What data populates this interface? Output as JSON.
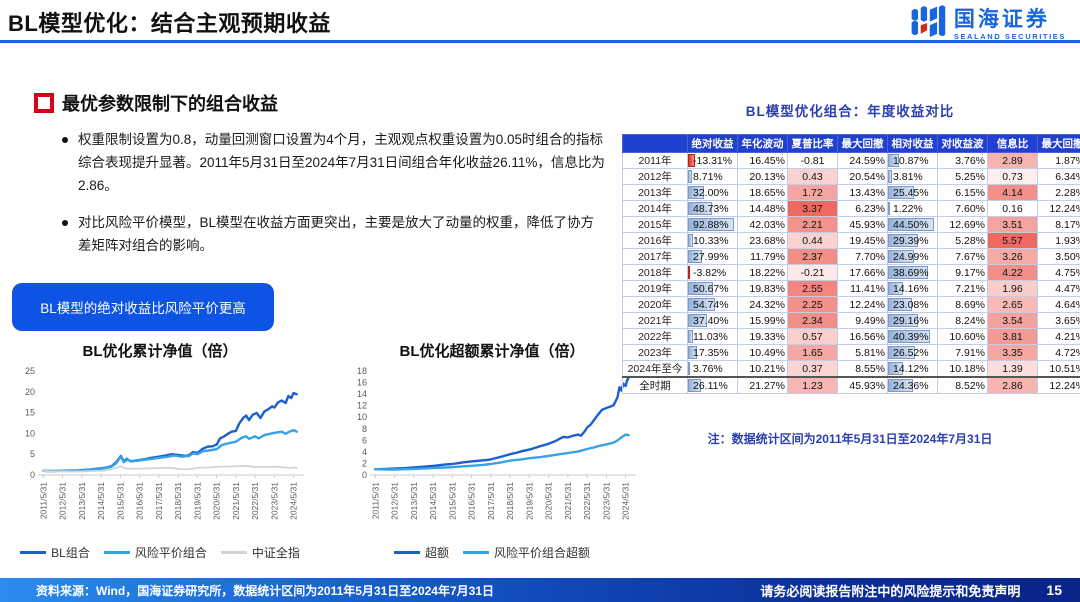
{
  "header": {
    "title": "BL模型优化：结合主观预期收益",
    "logo": {
      "brand": "国海证券",
      "sub": "SEALAND SECURITIES"
    }
  },
  "section": {
    "heading": "最优参数限制下的组合收益",
    "bullets": [
      "权重限制设置为0.8，动量回测窗口设置为4个月，主观观点权重设置为0.05时组合的指标综合表现提升显著。2011年5月31日至2024年7月31日间组合年化收益26.11%，信息比为2.86。",
      "对比风险平价模型，BL模型在收益方面更突出，主要是放大了动量的权重，降低了协方差矩阵对组合的影响。"
    ],
    "callout": "BL模型的绝对收益比风险平价更高"
  },
  "colors": {
    "accent_blue": "#1666e3",
    "callout_bg": "#0d53e4",
    "table_header_bg": "#2140d0",
    "dark_line": "#1b5fd0",
    "light_line": "#35a3e6",
    "gray_line": "#d4d4d4",
    "heat_red": "#ee6a60",
    "bar_blue": "#97b3d9",
    "negative_red": "#d9372b",
    "note_blue": "#2b3fb0"
  },
  "chart_data": [
    {
      "type": "line",
      "title": "BL优化累计净值（倍）",
      "xlabel": "",
      "ylabel": "",
      "xlim": [
        2011.25,
        2024.75
      ],
      "ylim": [
        0,
        25
      ],
      "y_ticks": [
        0,
        5,
        10,
        15,
        20,
        25
      ],
      "x_ticks": [
        "2011/5/31",
        "2012/5/31",
        "2013/5/31",
        "2014/5/31",
        "2015/5/31",
        "2016/5/31",
        "2017/5/31",
        "2018/5/31",
        "2019/5/31",
        "2020/5/31",
        "2021/5/31",
        "2022/5/31",
        "2023/5/31",
        "2024/5/31"
      ],
      "x_tick_start": 2011.42,
      "legend_position": "bottom",
      "grid": false,
      "series": [
        {
          "name": "BL组合",
          "color": "#1b5fd0",
          "width": 2.4,
          "x": [
            2011.42,
            2011.7,
            2012.0,
            2012.3,
            2012.6,
            2012.9,
            2013.2,
            2013.5,
            2013.8,
            2014.1,
            2014.42,
            2014.7,
            2014.95,
            2015.2,
            2015.45,
            2015.6,
            2015.75,
            2015.95,
            2016.1,
            2016.42,
            2016.7,
            2017.0,
            2017.42,
            2017.8,
            2018.1,
            2018.42,
            2018.8,
            2019.0,
            2019.2,
            2019.42,
            2019.7,
            2019.95,
            2020.2,
            2020.42,
            2020.6,
            2020.85,
            2021.0,
            2021.2,
            2021.42,
            2021.6,
            2021.8,
            2021.95,
            2022.1,
            2022.3,
            2022.5,
            2022.7,
            2022.9,
            2023.1,
            2023.3,
            2023.42,
            2023.6,
            2023.8,
            2024.0,
            2024.15,
            2024.3,
            2024.42,
            2024.58
          ],
          "y": [
            1.0,
            0.95,
            0.9,
            1.0,
            1.05,
            1.05,
            1.1,
            1.2,
            1.3,
            1.45,
            1.6,
            1.8,
            2.1,
            3.0,
            4.6,
            3.2,
            3.9,
            3.3,
            3.4,
            3.6,
            3.8,
            4.1,
            4.4,
            4.7,
            5.0,
            4.8,
            4.6,
            4.8,
            5.5,
            5.3,
            6.3,
            6.8,
            6.9,
            7.3,
            8.8,
            9.4,
            9.9,
            10.4,
            10.6,
            12.4,
            13.7,
            14.3,
            13.2,
            14.5,
            14.9,
            13.7,
            15.3,
            15.8,
            16.5,
            16.2,
            17.4,
            17.9,
            17.3,
            19.0,
            18.5,
            19.7,
            19.4
          ]
        },
        {
          "name": "风险平价组合",
          "color": "#35a3e6",
          "width": 2.4,
          "x": [
            2011.42,
            2012.0,
            2012.42,
            2012.9,
            2013.42,
            2013.9,
            2014.42,
            2014.95,
            2015.2,
            2015.45,
            2015.6,
            2015.8,
            2016.0,
            2016.42,
            2016.9,
            2017.42,
            2017.9,
            2018.2,
            2018.6,
            2019.0,
            2019.2,
            2019.42,
            2019.7,
            2020.0,
            2020.42,
            2020.7,
            2021.0,
            2021.42,
            2021.7,
            2021.95,
            2022.1,
            2022.42,
            2022.6,
            2022.9,
            2023.2,
            2023.5,
            2023.8,
            2024.0,
            2024.2,
            2024.42,
            2024.58
          ],
          "y": [
            1.0,
            0.95,
            1.0,
            1.05,
            1.1,
            1.3,
            1.5,
            1.95,
            2.8,
            4.5,
            3.1,
            3.7,
            3.3,
            3.5,
            3.8,
            4.1,
            4.4,
            4.7,
            4.4,
            4.6,
            5.2,
            5.0,
            5.7,
            5.9,
            6.2,
            7.2,
            7.6,
            8.0,
            8.9,
            9.3,
            8.7,
            9.3,
            8.8,
            9.6,
            9.9,
            10.2,
            10.4,
            9.9,
            10.4,
            10.8,
            10.4
          ]
        },
        {
          "name": "中证全指",
          "color": "#d4d4d4",
          "width": 1.8,
          "x": [
            2011.42,
            2012.0,
            2012.42,
            2013.0,
            2013.42,
            2014.0,
            2014.42,
            2014.9,
            2015.2,
            2015.45,
            2015.7,
            2016.0,
            2016.42,
            2017.0,
            2017.42,
            2017.9,
            2018.42,
            2018.8,
            2019.0,
            2019.42,
            2020.0,
            2020.6,
            2021.0,
            2021.42,
            2021.9,
            2022.42,
            2022.9,
            2023.42,
            2023.9,
            2024.2,
            2024.42,
            2024.58
          ],
          "y": [
            1.0,
            0.85,
            0.9,
            0.85,
            0.9,
            0.95,
            1.0,
            1.25,
            1.7,
            2.15,
            1.55,
            1.5,
            1.55,
            1.6,
            1.65,
            1.75,
            1.5,
            1.35,
            1.4,
            1.7,
            1.8,
            2.0,
            2.05,
            2.1,
            2.2,
            1.9,
            1.95,
            2.0,
            1.85,
            1.7,
            1.8,
            1.75
          ]
        }
      ]
    },
    {
      "type": "line",
      "title": "BL优化超额累计净值（倍）",
      "xlabel": "",
      "ylabel": "",
      "xlim": [
        2011.25,
        2024.75
      ],
      "ylim": [
        0,
        18
      ],
      "y_ticks": [
        0,
        2,
        4,
        6,
        8,
        10,
        12,
        14,
        16,
        18
      ],
      "x_ticks": [
        "2011/5/31",
        "2012/5/31",
        "2013/5/31",
        "2014/5/31",
        "2015/5/31",
        "2016/5/31",
        "2017/5/31",
        "2018/5/31",
        "2019/5/31",
        "2020/5/31",
        "2021/5/31",
        "2022/5/31",
        "2023/5/31",
        "2024/5/31"
      ],
      "x_tick_start": 2011.42,
      "legend_position": "bottom",
      "grid": false,
      "series": [
        {
          "name": "超额",
          "color": "#1b5fd0",
          "width": 2.4,
          "x": [
            2011.42,
            2012.0,
            2012.42,
            2013.0,
            2013.42,
            2014.0,
            2014.42,
            2015.0,
            2015.42,
            2015.8,
            2016.0,
            2016.42,
            2016.9,
            2017.2,
            2017.42,
            2017.7,
            2018.0,
            2018.42,
            2018.8,
            2019.0,
            2019.42,
            2019.8,
            2020.0,
            2020.42,
            2020.8,
            2021.0,
            2021.2,
            2021.42,
            2021.7,
            2021.95,
            2022.1,
            2022.3,
            2022.42,
            2022.6,
            2022.8,
            2023.0,
            2023.2,
            2023.42,
            2023.6,
            2023.8,
            2024.0,
            2024.1,
            2024.2,
            2024.3,
            2024.42,
            2024.5,
            2024.58
          ],
          "y": [
            1.0,
            1.05,
            1.1,
            1.2,
            1.3,
            1.45,
            1.55,
            1.8,
            1.9,
            2.1,
            2.2,
            2.35,
            2.5,
            2.6,
            2.7,
            2.95,
            3.2,
            3.6,
            3.9,
            4.1,
            4.4,
            4.8,
            5.0,
            5.4,
            5.9,
            6.3,
            6.6,
            6.5,
            6.8,
            7.0,
            6.8,
            7.6,
            8.2,
            8.7,
            9.6,
            10.5,
            11.3,
            11.6,
            11.8,
            12.1,
            13.5,
            15.2,
            14.6,
            15.8,
            15.4,
            16.4,
            16.9
          ]
        },
        {
          "name": "风险平价组合超额",
          "color": "#35a3e6",
          "width": 2.4,
          "x": [
            2011.42,
            2012.0,
            2012.42,
            2013.0,
            2013.42,
            2014.0,
            2014.42,
            2015.0,
            2015.42,
            2016.0,
            2016.42,
            2017.0,
            2017.42,
            2018.0,
            2018.42,
            2019.0,
            2019.42,
            2020.0,
            2020.42,
            2021.0,
            2021.42,
            2022.0,
            2022.42,
            2022.8,
            2023.0,
            2023.42,
            2023.8,
            2024.0,
            2024.2,
            2024.42,
            2024.58
          ],
          "y": [
            1.0,
            0.95,
            0.95,
            1.0,
            1.05,
            1.15,
            1.2,
            1.3,
            1.35,
            1.5,
            1.6,
            1.75,
            1.9,
            2.2,
            2.5,
            2.7,
            2.9,
            3.1,
            3.3,
            3.6,
            3.8,
            4.1,
            4.5,
            4.8,
            5.0,
            5.3,
            5.6,
            6.0,
            6.5,
            7.0,
            6.9
          ]
        }
      ]
    }
  ],
  "table": {
    "title": "BL模型优化组合：年度收益对比",
    "columns": [
      "",
      "绝对收益",
      "年化波动",
      "夏普比率",
      "最大回撤",
      "相对收益",
      "对收益波",
      "信息比",
      "最大回撤"
    ],
    "col_styles": [
      "label",
      "databar",
      "plain",
      "heat",
      "plain",
      "databar",
      "plain",
      "heat",
      "plain"
    ],
    "databar_max": {
      "1": 92.88,
      "5": 44.5
    },
    "heat_range": {
      "3": [
        -0.81,
        3.37
      ],
      "7": [
        0.16,
        5.57
      ]
    },
    "group_separator_cols": [
      1,
      5
    ],
    "rows": [
      [
        "2011年",
        "-13.31%",
        "16.45%",
        "-0.81",
        "24.59%",
        "10.87%",
        "3.76%",
        "2.89",
        "1.87%"
      ],
      [
        "2012年",
        "8.71%",
        "20.13%",
        "0.43",
        "20.54%",
        "3.81%",
        "5.25%",
        "0.73",
        "6.34%"
      ],
      [
        "2013年",
        "32.00%",
        "18.65%",
        "1.72",
        "13.43%",
        "25.45%",
        "6.15%",
        "4.14",
        "2.28%"
      ],
      [
        "2014年",
        "48.73%",
        "14.48%",
        "3.37",
        "6.23%",
        "1.22%",
        "7.60%",
        "0.16",
        "12.24%"
      ],
      [
        "2015年",
        "92.88%",
        "42.03%",
        "2.21",
        "45.93%",
        "44.50%",
        "12.69%",
        "3.51",
        "8.17%"
      ],
      [
        "2016年",
        "10.33%",
        "23.68%",
        "0.44",
        "19.45%",
        "29.39%",
        "5.28%",
        "5.57",
        "1.93%"
      ],
      [
        "2017年",
        "27.99%",
        "11.79%",
        "2.37",
        "7.70%",
        "24.99%",
        "7.67%",
        "3.26",
        "3.50%"
      ],
      [
        "2018年",
        "-3.82%",
        "18.22%",
        "-0.21",
        "17.66%",
        "38.69%",
        "9.17%",
        "4.22",
        "4.75%"
      ],
      [
        "2019年",
        "50.67%",
        "19.83%",
        "2.55",
        "11.41%",
        "14.16%",
        "7.21%",
        "1.96",
        "4.47%"
      ],
      [
        "2020年",
        "54.74%",
        "24.32%",
        "2.25",
        "12.24%",
        "23.08%",
        "8.69%",
        "2.65",
        "4.64%"
      ],
      [
        "2021年",
        "37.40%",
        "15.99%",
        "2.34",
        "9.49%",
        "29.16%",
        "8.24%",
        "3.54",
        "3.65%"
      ],
      [
        "2022年",
        "11.03%",
        "19.33%",
        "0.57",
        "16.56%",
        "40.39%",
        "10.60%",
        "3.81",
        "4.21%"
      ],
      [
        "2023年",
        "17.35%",
        "10.49%",
        "1.65",
        "5.81%",
        "26.52%",
        "7.91%",
        "3.35",
        "4.72%"
      ],
      [
        "2024年至今",
        "3.76%",
        "10.21%",
        "0.37",
        "8.55%",
        "14.12%",
        "10.18%",
        "1.39",
        "10.51%"
      ],
      [
        "全时期",
        "26.11%",
        "21.27%",
        "1.23",
        "45.93%",
        "24.36%",
        "8.52%",
        "2.86",
        "12.24%"
      ]
    ],
    "note": "注：数据统计区间为2011年5月31日至2024年7月31日"
  },
  "footer": {
    "source": "资料来源：Wind，国海证券研究所，数据统计区间为2011年5月31日至2024年7月31日",
    "disclaimer": "请务必阅读报告附注中的风险提示和免责声明",
    "page": "15"
  }
}
